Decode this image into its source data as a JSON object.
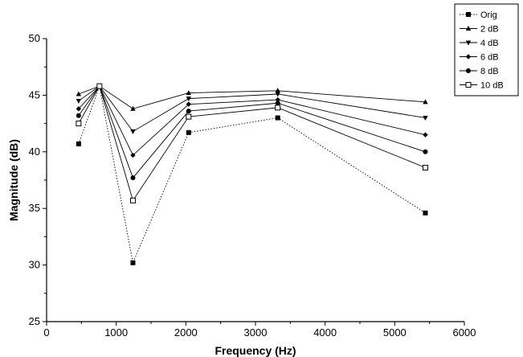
{
  "chart_data": {
    "type": "line",
    "title": "",
    "xlabel": "Frequency (Hz)",
    "ylabel": "Magnitude (dB)",
    "xlim": [
      0,
      6000
    ],
    "ylim": [
      25,
      50
    ],
    "x_ticks": [
      0,
      1000,
      2000,
      3000,
      4000,
      5000,
      6000
    ],
    "y_ticks": [
      25,
      30,
      35,
      40,
      45,
      50
    ],
    "grid": false,
    "legend_position": "top-right",
    "x": [
      460,
      760,
      1240,
      2040,
      3320,
      5440
    ],
    "series": [
      {
        "name": "Orig",
        "marker": "square-filled",
        "line": "dotted",
        "values": [
          40.7,
          45.8,
          30.2,
          41.7,
          43.0,
          34.6
        ]
      },
      {
        "name": "2 dB",
        "marker": "triangle-up",
        "line": "solid",
        "values": [
          45.1,
          45.8,
          43.8,
          45.2,
          45.4,
          44.4
        ]
      },
      {
        "name": "4 dB",
        "marker": "triangle-down",
        "line": "solid",
        "values": [
          44.5,
          45.8,
          41.8,
          44.7,
          45.1,
          43.0
        ]
      },
      {
        "name": "6 dB",
        "marker": "diamond",
        "line": "solid",
        "values": [
          43.8,
          45.8,
          39.7,
          44.2,
          44.6,
          41.5
        ]
      },
      {
        "name": "8 dB",
        "marker": "circle-filled",
        "line": "solid",
        "values": [
          43.2,
          45.8,
          37.7,
          43.6,
          44.3,
          40.0
        ]
      },
      {
        "name": "10 dB",
        "marker": "square-open",
        "line": "solid",
        "values": [
          42.5,
          45.8,
          35.7,
          43.1,
          43.9,
          38.6
        ]
      }
    ]
  }
}
